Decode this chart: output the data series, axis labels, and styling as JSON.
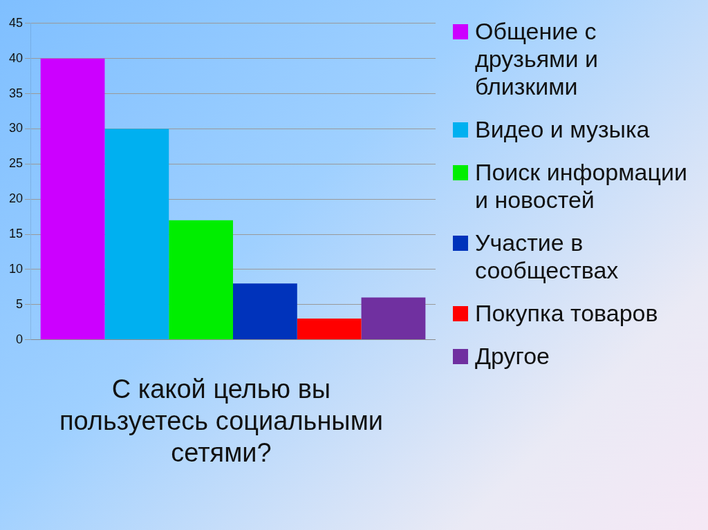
{
  "chart_data": {
    "type": "bar",
    "title": "С какой целью вы пользуетесь социальными сетями?",
    "categories": [
      null
    ],
    "series": [
      {
        "name": "Общение с друзьями и близкими",
        "color": "#cc00ff",
        "values": [
          40
        ]
      },
      {
        "name": "Видео и музыка",
        "color": "#00b0f0",
        "values": [
          30
        ]
      },
      {
        "name": "Поиск информации и новостей",
        "color": "#00ee00",
        "values": [
          17
        ]
      },
      {
        "name": "Участие в сообществах",
        "color": "#0033bb",
        "values": [
          8
        ]
      },
      {
        "name": "Покупка товаров",
        "color": "#ff0000",
        "values": [
          3
        ]
      },
      {
        "name": "Другое",
        "color": "#7030a0",
        "values": [
          6
        ]
      }
    ],
    "ylim": [
      0,
      45
    ],
    "yticks": [
      0,
      5,
      10,
      15,
      20,
      25,
      30,
      35,
      40,
      45
    ],
    "grid": "y",
    "legend": "right"
  }
}
